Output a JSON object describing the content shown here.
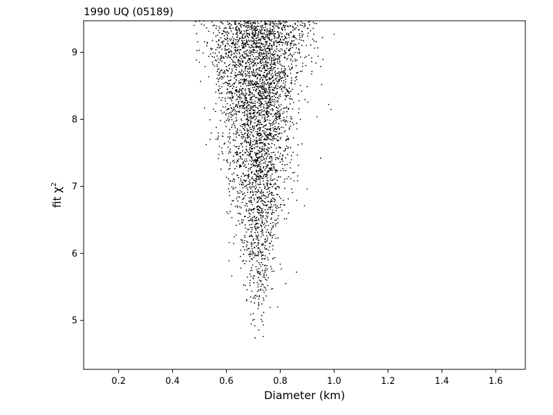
{
  "chart_data": {
    "type": "scatter",
    "title": "1990 UQ (05189)",
    "xlabel": "Diameter (km)",
    "ylabel_prefix": "fit χ",
    "ylabel_superscript": "2",
    "xlim": [
      0.07,
      1.71
    ],
    "ylim": [
      4.27,
      9.47
    ],
    "xticks": [
      0.2,
      0.4,
      0.6,
      0.8,
      1.0,
      1.2,
      1.4,
      1.6
    ],
    "xtick_labels": [
      "0.2",
      "0.4",
      "0.6",
      "0.8",
      "1.0",
      "1.2",
      "1.4",
      "1.6"
    ],
    "yticks": [
      5,
      6,
      7,
      8,
      9
    ],
    "ytick_labels": [
      "5",
      "6",
      "7",
      "8",
      "9"
    ],
    "grid": false,
    "marker_color": "#000000",
    "distribution": {
      "point_count": 3500,
      "diameter_center_km": 0.72,
      "diameter_min_km": 0.48,
      "diameter_max_km": 1.0,
      "chi2_min": 4.74,
      "chi2_max": 9.47
    },
    "points": [
      {
        "x": 0.707,
        "y": 4.74
      },
      {
        "x": 0.737,
        "y": 4.76
      },
      {
        "x": 0.737,
        "y": 4.93
      },
      {
        "x": 0.69,
        "y": 5.09
      },
      {
        "x": 0.718,
        "y": 5.18
      },
      {
        "x": 0.739,
        "y": 5.3
      },
      {
        "x": 0.79,
        "y": 5.2
      },
      {
        "x": 0.74,
        "y": 5.42
      },
      {
        "x": 0.7,
        "y": 5.63
      },
      {
        "x": 0.75,
        "y": 5.6
      },
      {
        "x": 0.82,
        "y": 5.55
      },
      {
        "x": 0.62,
        "y": 5.66
      },
      {
        "x": 0.67,
        "y": 5.52
      },
      {
        "x": 0.61,
        "y": 5.89
      },
      {
        "x": 0.86,
        "y": 5.72
      },
      {
        "x": 0.95,
        "y": 7.42
      },
      {
        "x": 0.98,
        "y": 8.22
      },
      {
        "x": 1.0,
        "y": 9.27
      },
      {
        "x": 0.5,
        "y": 8.85
      },
      {
        "x": 0.48,
        "y": 9.4
      },
      {
        "x": 0.89,
        "y": 6.71
      },
      {
        "x": 0.9,
        "y": 6.96
      },
      {
        "x": 0.54,
        "y": 7.7
      }
    ]
  }
}
